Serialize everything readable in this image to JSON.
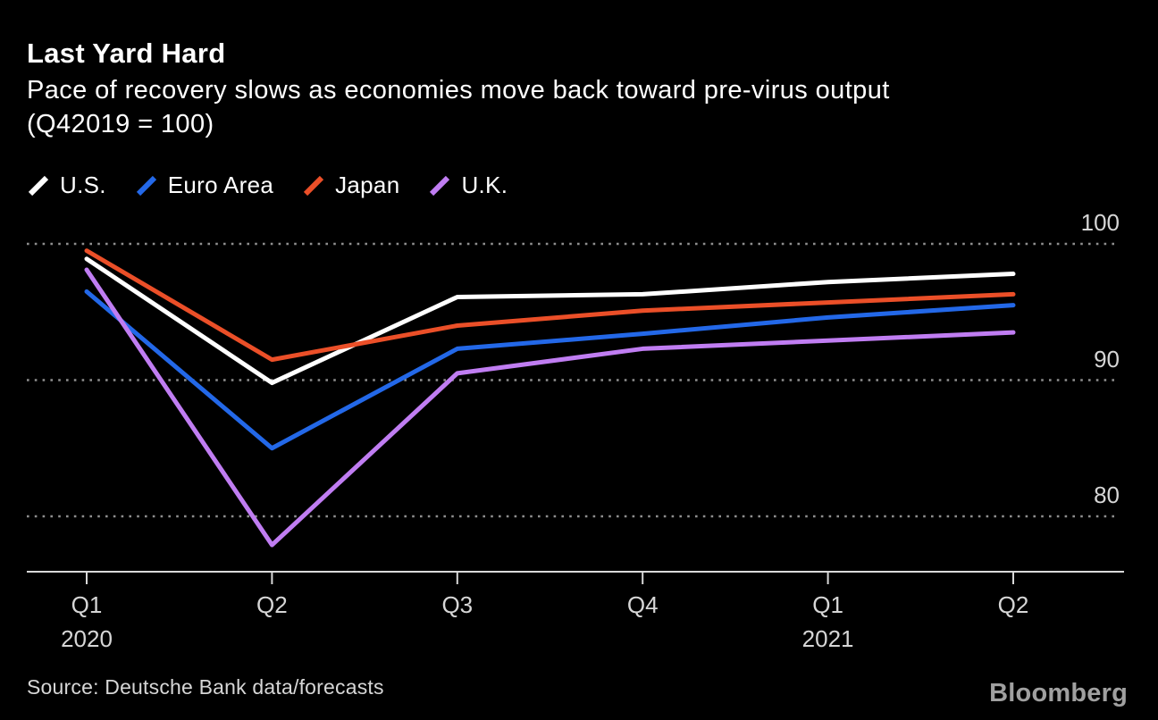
{
  "header": {
    "title": "Last Yard Hard",
    "subtitle_line1": "Pace of recovery slows as economies move back toward pre-virus output",
    "subtitle_line2": "(Q42019 = 100)"
  },
  "chart_data": {
    "type": "line",
    "title": "Last Yard Hard",
    "subtitle": "Pace of recovery slows as economies move back toward pre-virus output (Q42019 = 100)",
    "categories": [
      "Q1 2020",
      "Q2 2020",
      "Q3 2020",
      "Q4 2020",
      "Q1 2021",
      "Q2 2021"
    ],
    "x_ticks": [
      {
        "quarter": "Q1",
        "year": "2020"
      },
      {
        "quarter": "Q2",
        "year": ""
      },
      {
        "quarter": "Q3",
        "year": ""
      },
      {
        "quarter": "Q4",
        "year": ""
      },
      {
        "quarter": "Q1",
        "year": "2021"
      },
      {
        "quarter": "Q2",
        "year": ""
      }
    ],
    "series": [
      {
        "name": "U.S.",
        "color": "#ffffff",
        "values": [
          98.9,
          89.8,
          96.1,
          96.3,
          97.2,
          97.8
        ]
      },
      {
        "name": "Euro Area",
        "color": "#2368e8",
        "values": [
          96.5,
          85.0,
          92.3,
          93.4,
          94.6,
          95.5
        ]
      },
      {
        "name": "Japan",
        "color": "#eb4f28",
        "values": [
          99.5,
          91.5,
          94.0,
          95.1,
          95.7,
          96.3
        ]
      },
      {
        "name": "U.K.",
        "color": "#c07df2",
        "values": [
          98.1,
          77.9,
          90.5,
          92.3,
          92.9,
          93.5
        ]
      }
    ],
    "yticks": [
      100,
      90,
      80
    ],
    "ylim": [
      76,
      101
    ],
    "grid": "dotted-horizontal",
    "legend_position": "top-left",
    "xlabel": "",
    "ylabel": ""
  },
  "colors": {
    "background": "#000000",
    "axis": "#d9d9d9",
    "gridline": "#8f8f8f",
    "tick_text": "#d6d6d6"
  },
  "footer": {
    "source": "Source: Deutsche Bank data/forecasts",
    "brand": "Bloomberg"
  }
}
